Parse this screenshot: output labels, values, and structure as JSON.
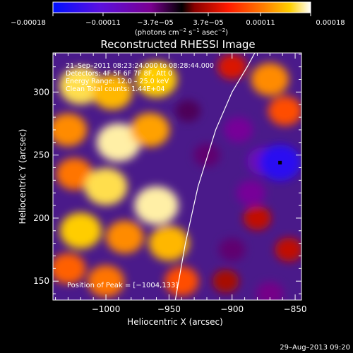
{
  "chart_data": {
    "type": "heatmap",
    "title": "Reconstructed RHESSI Image",
    "xlabel": "Heliocentric X (arcsec)",
    "ylabel": "Heliocentric Y (arcsec)",
    "xlim": [
      -1042,
      -845
    ],
    "ylim": [
      135,
      331
    ],
    "x_ticks": [
      -1000,
      -950,
      -900,
      -850
    ],
    "x_tick_labels": [
      "−1000",
      "−950",
      "−900",
      "−850"
    ],
    "y_ticks": [
      150,
      200,
      250,
      300
    ],
    "y_tick_labels": [
      "150",
      "200",
      "250",
      "300"
    ],
    "colorbar": {
      "ticks": [
        -0.00018,
        -0.00011,
        -3.7e-05,
        3.7e-05,
        0.00011,
        0.00018
      ],
      "tick_labels": [
        "−0.00018",
        "−0.00011",
        "−3.7e−05",
        "3.7e−05",
        "0.00011",
        "0.00018"
      ],
      "range": [
        -0.00018,
        0.00018
      ],
      "units_prefix": "(photons cm",
      "units_sup1": "−2",
      "units_mid": " s",
      "units_sup2": "−1",
      "units_mid2": " asec",
      "units_sup3": "−2",
      "units_suffix": ")"
    },
    "annotations": [
      "21–Sep–2011 08:23:24.000 to 08:28:44.000",
      "Detectors: 4F 5F 6F 7F 8F, Att 0",
      "Energy Range: 12.0 – 25.0 keV",
      "Clean     Total counts: 1.44E+04"
    ],
    "peak_label": "Position of Peak = [−1004,133]",
    "peak_position": [
      -1004,
      133
    ],
    "min_marker_position": [
      -862,
      244
    ],
    "limb_curve": [
      [
        -945,
        135
      ],
      [
        -937,
        180
      ],
      [
        -927,
        225
      ],
      [
        -913,
        270
      ],
      [
        -900,
        300
      ],
      [
        -888,
        320
      ],
      [
        -882,
        331
      ]
    ],
    "blobs": [
      {
        "x": -1020,
        "y": 305,
        "v": 0.00016
      },
      {
        "x": -995,
        "y": 300,
        "v": 0.00014
      },
      {
        "x": -960,
        "y": 310,
        "v": 0.00015
      },
      {
        "x": -1030,
        "y": 270,
        "v": 0.00012
      },
      {
        "x": -990,
        "y": 260,
        "v": 0.00017
      },
      {
        "x": -965,
        "y": 270,
        "v": 0.00013
      },
      {
        "x": -1025,
        "y": 235,
        "v": 0.00011
      },
      {
        "x": -1000,
        "y": 225,
        "v": 0.00016
      },
      {
        "x": -960,
        "y": 210,
        "v": 0.00017
      },
      {
        "x": -1020,
        "y": 190,
        "v": 0.00015
      },
      {
        "x": -985,
        "y": 185,
        "v": 0.00012
      },
      {
        "x": -950,
        "y": 180,
        "v": 0.00014
      },
      {
        "x": -1030,
        "y": 160,
        "v": 0.0001
      },
      {
        "x": -1000,
        "y": 150,
        "v": 0.00011
      },
      {
        "x": -940,
        "y": 150,
        "v": 9e-05
      },
      {
        "x": -870,
        "y": 310,
        "v": 0.00012
      },
      {
        "x": -858,
        "y": 285,
        "v": 9e-05
      },
      {
        "x": -900,
        "y": 320,
        "v": 5e-05
      },
      {
        "x": -880,
        "y": 200,
        "v": 4e-05
      },
      {
        "x": -855,
        "y": 175,
        "v": 4e-05
      },
      {
        "x": -905,
        "y": 150,
        "v": 3e-05
      },
      {
        "x": -920,
        "y": 250,
        "v": -3e-05
      },
      {
        "x": -895,
        "y": 270,
        "v": -5e-05
      },
      {
        "x": -875,
        "y": 245,
        "v": -8e-05
      },
      {
        "x": -862,
        "y": 244,
        "v": -0.00015
      },
      {
        "x": -885,
        "y": 220,
        "v": -5e-05
      },
      {
        "x": -935,
        "y": 285,
        "v": -2e-05
      },
      {
        "x": -900,
        "y": 175,
        "v": -3e-05
      },
      {
        "x": -870,
        "y": 140,
        "v": -4e-05
      }
    ]
  },
  "footer": {
    "date": "29–Aug–2013 09:20"
  }
}
